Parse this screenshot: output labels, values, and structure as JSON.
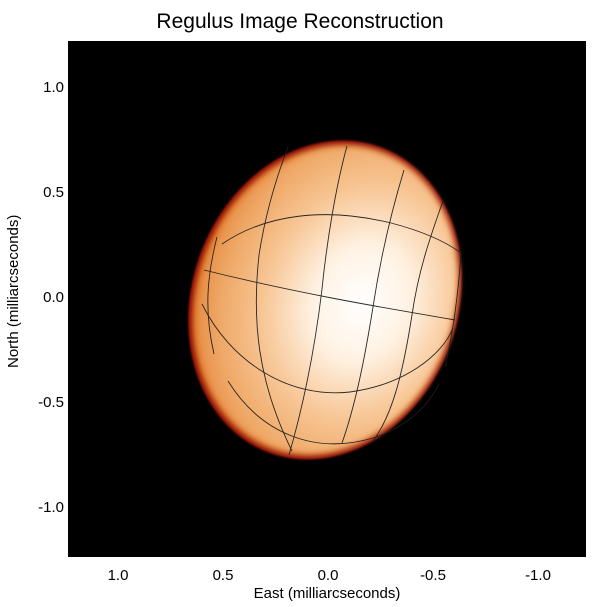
{
  "figure": {
    "title": "Regulus Image Reconstruction",
    "xlabel": "East (milliarcseconds)",
    "ylabel": "North (milliarcseconds)",
    "x_ticks": [
      "1.0",
      "0.5",
      "0.0",
      "-0.5",
      "-1.0"
    ],
    "y_ticks": [
      "1.0",
      "0.5",
      "0.0",
      "-0.5",
      "-1.0"
    ]
  },
  "image_content": {
    "background_color": "#000000",
    "star_center_color": "#FFF3E2",
    "star_mid_color": "#F4B77B",
    "star_limb_color": "#D7661B",
    "rim_color": "#8C1006",
    "grid_color": "#1E1E1E"
  }
}
